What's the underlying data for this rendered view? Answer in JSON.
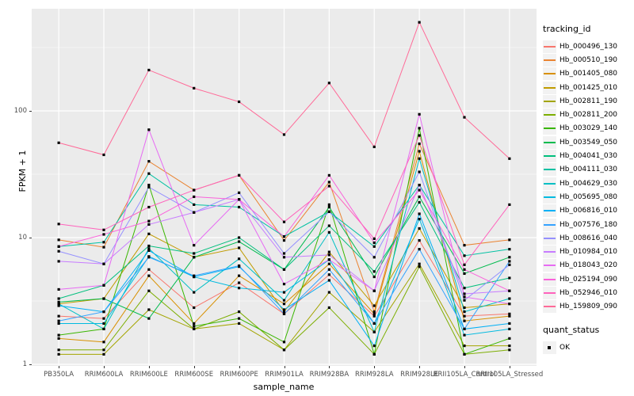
{
  "figure": {
    "panel_bg": "#EBEBEB",
    "grid_color": "#FFFFFF",
    "tick_label_color": "#4D4D4D"
  },
  "axes": {
    "x_title": "sample_name",
    "y_title": "FPKM + 1",
    "y_ticks": [
      "100",
      "10",
      "1"
    ]
  },
  "legend": {
    "tracking_title": "tracking_id",
    "quant_title": "quant_status",
    "quant_ok_label": "OK",
    "quant_marker": "black-square-icon"
  },
  "chart_data": {
    "type": "line",
    "title": "",
    "xlabel": "sample_name",
    "ylabel": "FPKM + 1",
    "y_scale": "log10",
    "ylim": [
      1,
      650
    ],
    "y_major_gridlines": [
      1,
      10,
      100
    ],
    "y_minor_gridlines": [
      3.162,
      31.62,
      316.2
    ],
    "grid": true,
    "legend_position": "right",
    "point_marker": "black square (quant_status = OK) at every data point",
    "categories": [
      "PB350LA",
      "RRIM600LA",
      "RRIM600LE",
      "RRIM600SE",
      "RRIM600PE",
      "RRIM901LA",
      "RRIM928BA",
      "RRIM928LA",
      "RRIM928LE",
      "RRII105LA_Control",
      "RRII105LA_Stressed"
    ],
    "series": [
      {
        "name": "Hb_000496_130",
        "color": "#F8766D",
        "values": [
          2.4,
          2.3,
          5.6,
          2.8,
          4.4,
          2.5,
          5.1,
          2.4,
          9.5,
          2.4,
          2.5
        ]
      },
      {
        "name": "Hb_000510_190",
        "color": "#EA8331",
        "values": [
          9.6,
          8.4,
          40,
          23.7,
          31,
          9.5,
          27.4,
          2.6,
          55,
          8.7,
          9.6
        ]
      },
      {
        "name": "Hb_001405_080",
        "color": "#D89000",
        "values": [
          1.6,
          1.5,
          5.0,
          2.1,
          5.0,
          3.0,
          6.2,
          2.5,
          48,
          2.2,
          2.4
        ]
      },
      {
        "name": "Hb_001425_010",
        "color": "#C09B00",
        "values": [
          3.0,
          3.3,
          10.7,
          7.0,
          8.3,
          2.6,
          7.7,
          2.9,
          11.8,
          2.8,
          3.0
        ]
      },
      {
        "name": "Hb_002811_190",
        "color": "#A3A500",
        "values": [
          1.2,
          1.2,
          2.7,
          1.9,
          2.1,
          1.3,
          3.7,
          1.8,
          6.2,
          1.4,
          1.4
        ]
      },
      {
        "name": "Hb_002811_200",
        "color": "#7CAE00",
        "values": [
          1.3,
          1.3,
          3.8,
          1.9,
          2.6,
          1.3,
          2.8,
          1.2,
          5.9,
          1.2,
          1.3
        ]
      },
      {
        "name": "Hb_003029_140",
        "color": "#39B600",
        "values": [
          1.7,
          1.9,
          26,
          2.0,
          2.3,
          1.5,
          18.2,
          1.2,
          73,
          1.2,
          1.6
        ]
      },
      {
        "name": "Hb_003549_050",
        "color": "#00BB4E",
        "values": [
          3.1,
          3.3,
          2.3,
          7.0,
          9.3,
          5.6,
          17.4,
          4.9,
          21,
          5.2,
          7.0
        ]
      },
      {
        "name": "Hb_004041_030",
        "color": "#00BF7D",
        "values": [
          3.3,
          4.2,
          8.6,
          7.5,
          10,
          5.6,
          12.4,
          5.4,
          19,
          4.0,
          4.8
        ]
      },
      {
        "name": "Hb_004111_030",
        "color": "#00C1A3",
        "values": [
          8.5,
          9.2,
          32,
          18.2,
          17.4,
          10.2,
          16,
          8.5,
          26,
          7.2,
          8.1
        ]
      },
      {
        "name": "Hb_004629_030",
        "color": "#00BFC4",
        "values": [
          3.0,
          1.9,
          8.2,
          3.7,
          6.8,
          3.2,
          11,
          1.8,
          42,
          2.6,
          3.3
        ]
      },
      {
        "name": "Hb_005695_080",
        "color": "#00BAE0",
        "values": [
          2.1,
          2.1,
          7.1,
          4.9,
          4.0,
          3.7,
          6.7,
          2.1,
          14,
          1.7,
          1.9
        ]
      },
      {
        "name": "Hb_006816_010",
        "color": "#00B0F6",
        "values": [
          2.9,
          2.6,
          7.9,
          4.9,
          5.9,
          2.7,
          4.6,
          1.4,
          15.4,
          1.9,
          2.1
        ]
      },
      {
        "name": "Hb_007576_180",
        "color": "#35A2FF",
        "values": [
          2.2,
          2.6,
          7.0,
          5.0,
          6.0,
          2.5,
          5.6,
          2.1,
          8.1,
          1.9,
          6.5
        ]
      },
      {
        "name": "Hb_008616_040",
        "color": "#9590FF",
        "values": [
          7.8,
          6.2,
          25,
          15.8,
          22.6,
          7.5,
          16,
          7.0,
          33,
          3.2,
          6.1
        ]
      },
      {
        "name": "Hb_010984_010",
        "color": "#C77CFF",
        "values": [
          6.5,
          6.2,
          12.7,
          15.8,
          20,
          7.0,
          7.3,
          3.8,
          26,
          3.6,
          3.8
        ]
      },
      {
        "name": "Hb_018043_020",
        "color": "#E76BF3",
        "values": [
          3.9,
          4.2,
          71,
          8.7,
          20,
          4.3,
          6.7,
          3.8,
          94,
          3.4,
          3.0
        ]
      },
      {
        "name": "Hb_025194_090",
        "color": "#FA62DB",
        "values": [
          8.5,
          10.6,
          13.5,
          21,
          20,
          10.2,
          31,
          9.1,
          23.7,
          5.6,
          3.8
        ]
      },
      {
        "name": "Hb_052946_010",
        "color": "#FF62BC",
        "values": [
          12.8,
          11.5,
          17.4,
          23.7,
          31,
          13.3,
          25.5,
          9.8,
          64,
          6.1,
          18.2
        ]
      },
      {
        "name": "Hb_159809_090",
        "color": "#FF6A98",
        "values": [
          56,
          45,
          210,
          151,
          118,
          65,
          166,
          52,
          500,
          89,
          42
        ]
      }
    ]
  }
}
